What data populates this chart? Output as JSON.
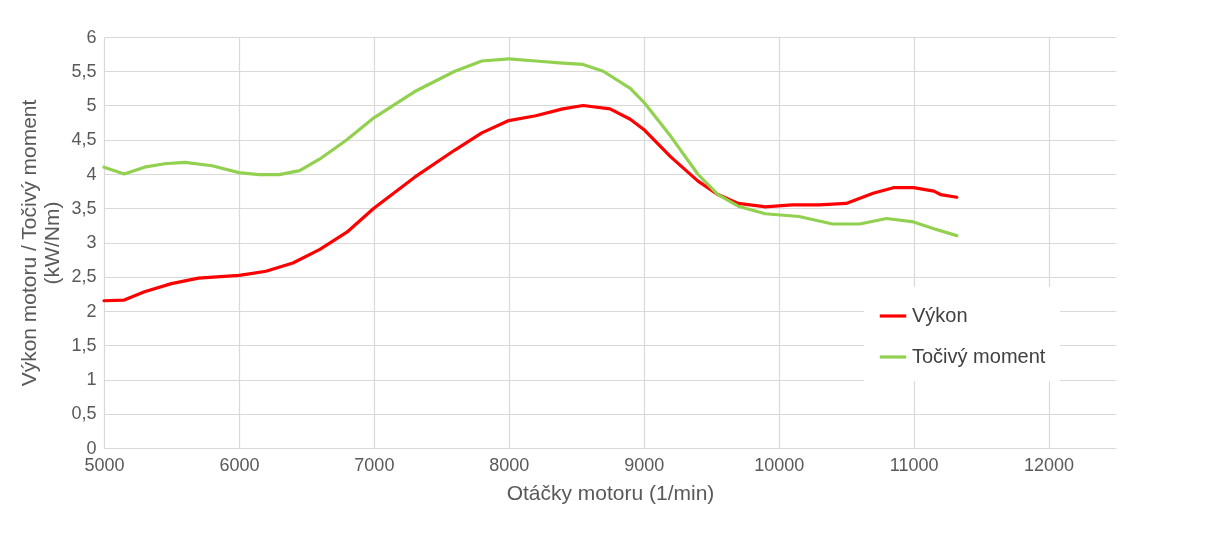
{
  "chart_data": {
    "type": "line",
    "xlabel": "Otáčky motoru (1/min)",
    "ylabel": "Výkon motoru / Točivý moment\n(kW/Nm)",
    "xlim": [
      5000,
      12500
    ],
    "xticks": [
      5000,
      6000,
      7000,
      8000,
      9000,
      10000,
      11000,
      12000
    ],
    "ylim": [
      0,
      6
    ],
    "yticks": [
      0,
      {
        "value": 0.5,
        "label": "0,5"
      },
      1,
      {
        "value": 1.5,
        "label": "1,5"
      },
      2,
      {
        "value": 2.5,
        "label": "2,5"
      },
      3,
      {
        "value": 3.5,
        "label": "3,5"
      },
      4,
      {
        "value": 4.5,
        "label": "4,5"
      },
      5,
      {
        "value": 5.5,
        "label": "5,5"
      },
      6
    ],
    "grid": true,
    "legend": "right",
    "marker": "none",
    "line_style": "solid",
    "series": [
      {
        "name": "Výkon",
        "color": "#ff0000",
        "x": [
          5000,
          5150,
          5300,
          5500,
          5700,
          6000,
          6200,
          6400,
          6600,
          6800,
          7000,
          7300,
          7600,
          7800,
          8000,
          8200,
          8400,
          8550,
          8750,
          8900,
          9000,
          9200,
          9400,
          9550,
          9700,
          9900,
          10100,
          10300,
          10500,
          10700,
          10850,
          11000,
          11150,
          11200,
          11320
        ],
        "values": [
          2.15,
          2.16,
          2.28,
          2.4,
          2.48,
          2.52,
          2.58,
          2.7,
          2.9,
          3.15,
          3.5,
          3.95,
          4.35,
          4.6,
          4.78,
          4.85,
          4.95,
          5.0,
          4.95,
          4.8,
          4.65,
          4.25,
          3.9,
          3.7,
          3.57,
          3.52,
          3.55,
          3.55,
          3.57,
          3.72,
          3.8,
          3.8,
          3.75,
          3.7,
          3.66
        ]
      },
      {
        "name": "Točivý moment",
        "color": "#92d050",
        "x": [
          5000,
          5150,
          5300,
          5450,
          5600,
          5800,
          6000,
          6150,
          6300,
          6450,
          6600,
          6800,
          7000,
          7300,
          7600,
          7800,
          8000,
          8200,
          8400,
          8550,
          8700,
          8900,
          9000,
          9200,
          9400,
          9550,
          9700,
          9900,
          10150,
          10400,
          10600,
          10800,
          11000,
          11150,
          11320
        ],
        "values": [
          4.1,
          4.0,
          4.1,
          4.15,
          4.17,
          4.12,
          4.02,
          3.99,
          3.99,
          4.05,
          4.22,
          4.5,
          4.82,
          5.2,
          5.5,
          5.65,
          5.68,
          5.65,
          5.62,
          5.6,
          5.5,
          5.25,
          5.05,
          4.55,
          4.0,
          3.7,
          3.53,
          3.42,
          3.38,
          3.27,
          3.27,
          3.35,
          3.3,
          3.2,
          3.1
        ]
      }
    ]
  }
}
